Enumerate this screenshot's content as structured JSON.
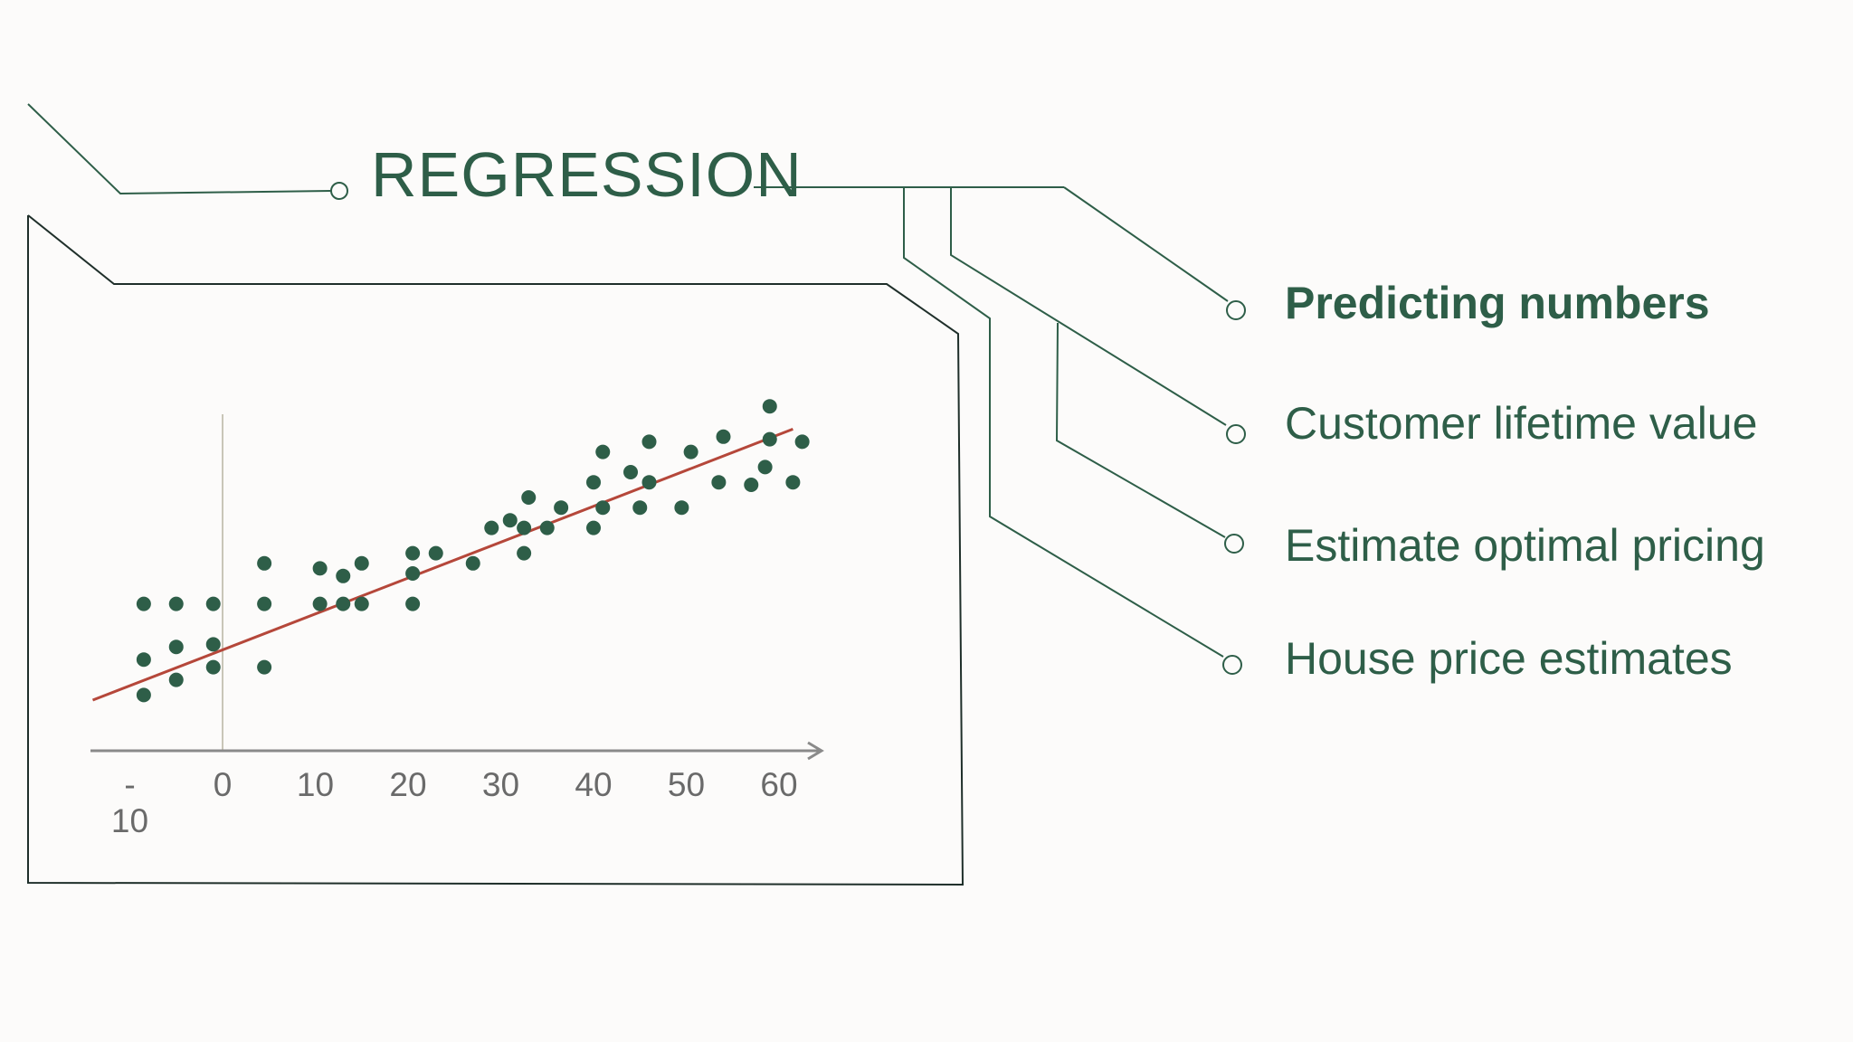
{
  "title": "REGRESSION",
  "items": [
    {
      "label": "Predicting numbers",
      "bold": true
    },
    {
      "label": "Customer lifetime value",
      "bold": false
    },
    {
      "label": "Estimate optimal pricing",
      "bold": false
    },
    {
      "label": "House price estimates",
      "bold": false
    }
  ],
  "colors": {
    "accent": "#2e5e48",
    "frame": "#1f2f2a",
    "fit_line": "#b5473a",
    "axis": "#8a8a8a",
    "y_axis": "#c9c6b8",
    "background": "#fcfbfa"
  },
  "chart_data": {
    "type": "scatter",
    "title": "",
    "xlabel": "",
    "ylabel": "",
    "xlim": [
      -14,
      66
    ],
    "x_ticks": [
      "-\n10",
      "0",
      "10",
      "20",
      "30",
      "40",
      "50",
      "60"
    ],
    "x_tick_values": [
      -10,
      0,
      10,
      20,
      30,
      40,
      50,
      60
    ],
    "y_axis_hidden": true,
    "grid": false,
    "series": [
      {
        "points": [
          [
            -8.5,
            2.2
          ],
          [
            -8.5,
            3.6
          ],
          [
            -8.5,
            5.8
          ],
          [
            -5,
            2.8
          ],
          [
            -5,
            4.1
          ],
          [
            -5,
            5.8
          ],
          [
            -1,
            3.3
          ],
          [
            -1,
            4.2
          ],
          [
            -1,
            5.8
          ],
          [
            4.5,
            3.3
          ],
          [
            4.5,
            5.8
          ],
          [
            4.5,
            7.4
          ],
          [
            10.5,
            5.8
          ],
          [
            10.5,
            7.2
          ],
          [
            13,
            5.8
          ],
          [
            13,
            6.9
          ],
          [
            15,
            5.8
          ],
          [
            15,
            7.4
          ],
          [
            20.5,
            5.8
          ],
          [
            20.5,
            7.0
          ],
          [
            20.5,
            7.8
          ],
          [
            23,
            7.8
          ],
          [
            27,
            7.4
          ],
          [
            29,
            8.8
          ],
          [
            31,
            9.1
          ],
          [
            32.5,
            7.8
          ],
          [
            32.5,
            8.8
          ],
          [
            33,
            10.0
          ],
          [
            35,
            8.8
          ],
          [
            36.5,
            9.6
          ],
          [
            40,
            8.8
          ],
          [
            40,
            10.6
          ],
          [
            41,
            9.6
          ],
          [
            41,
            11.8
          ],
          [
            44,
            11.0
          ],
          [
            45,
            9.6
          ],
          [
            46,
            10.6
          ],
          [
            46,
            12.2
          ],
          [
            49.5,
            9.6
          ],
          [
            50.5,
            11.8
          ],
          [
            53.5,
            10.6
          ],
          [
            54,
            12.4
          ],
          [
            57,
            10.5
          ],
          [
            58.5,
            11.2
          ],
          [
            59,
            12.3
          ],
          [
            59,
            13.6
          ],
          [
            61.5,
            10.6
          ],
          [
            62.5,
            12.2
          ]
        ]
      }
    ],
    "fit_line": {
      "x": [
        -14,
        61.5
      ],
      "y": [
        2,
        12.7
      ]
    }
  }
}
